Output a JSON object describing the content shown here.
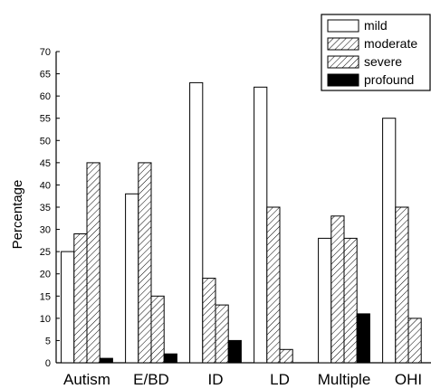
{
  "chart_data": {
    "type": "bar",
    "title": "",
    "xlabel": "",
    "ylabel": "Percentage",
    "ylim": [
      0,
      70
    ],
    "yticks": [
      0,
      5,
      10,
      15,
      20,
      25,
      30,
      35,
      40,
      45,
      50,
      55,
      60,
      65,
      70
    ],
    "categories": [
      "Autism",
      "E/BD",
      "ID",
      "LD",
      "Multiple",
      "OHI"
    ],
    "series": [
      {
        "name": "mild",
        "fill": "#ffffff",
        "values": [
          25,
          38,
          63,
          62,
          28,
          55
        ]
      },
      {
        "name": "moderate",
        "fill": "hatch",
        "values": [
          29,
          45,
          19,
          35,
          33,
          35
        ]
      },
      {
        "name": "severe",
        "fill": "hatch",
        "values": [
          45,
          15,
          13,
          3,
          28,
          10
        ]
      },
      {
        "name": "profound",
        "fill": "#000000",
        "values": [
          1,
          2,
          5,
          0,
          11,
          null
        ]
      }
    ],
    "legend_position": "top-right",
    "grid": false
  }
}
